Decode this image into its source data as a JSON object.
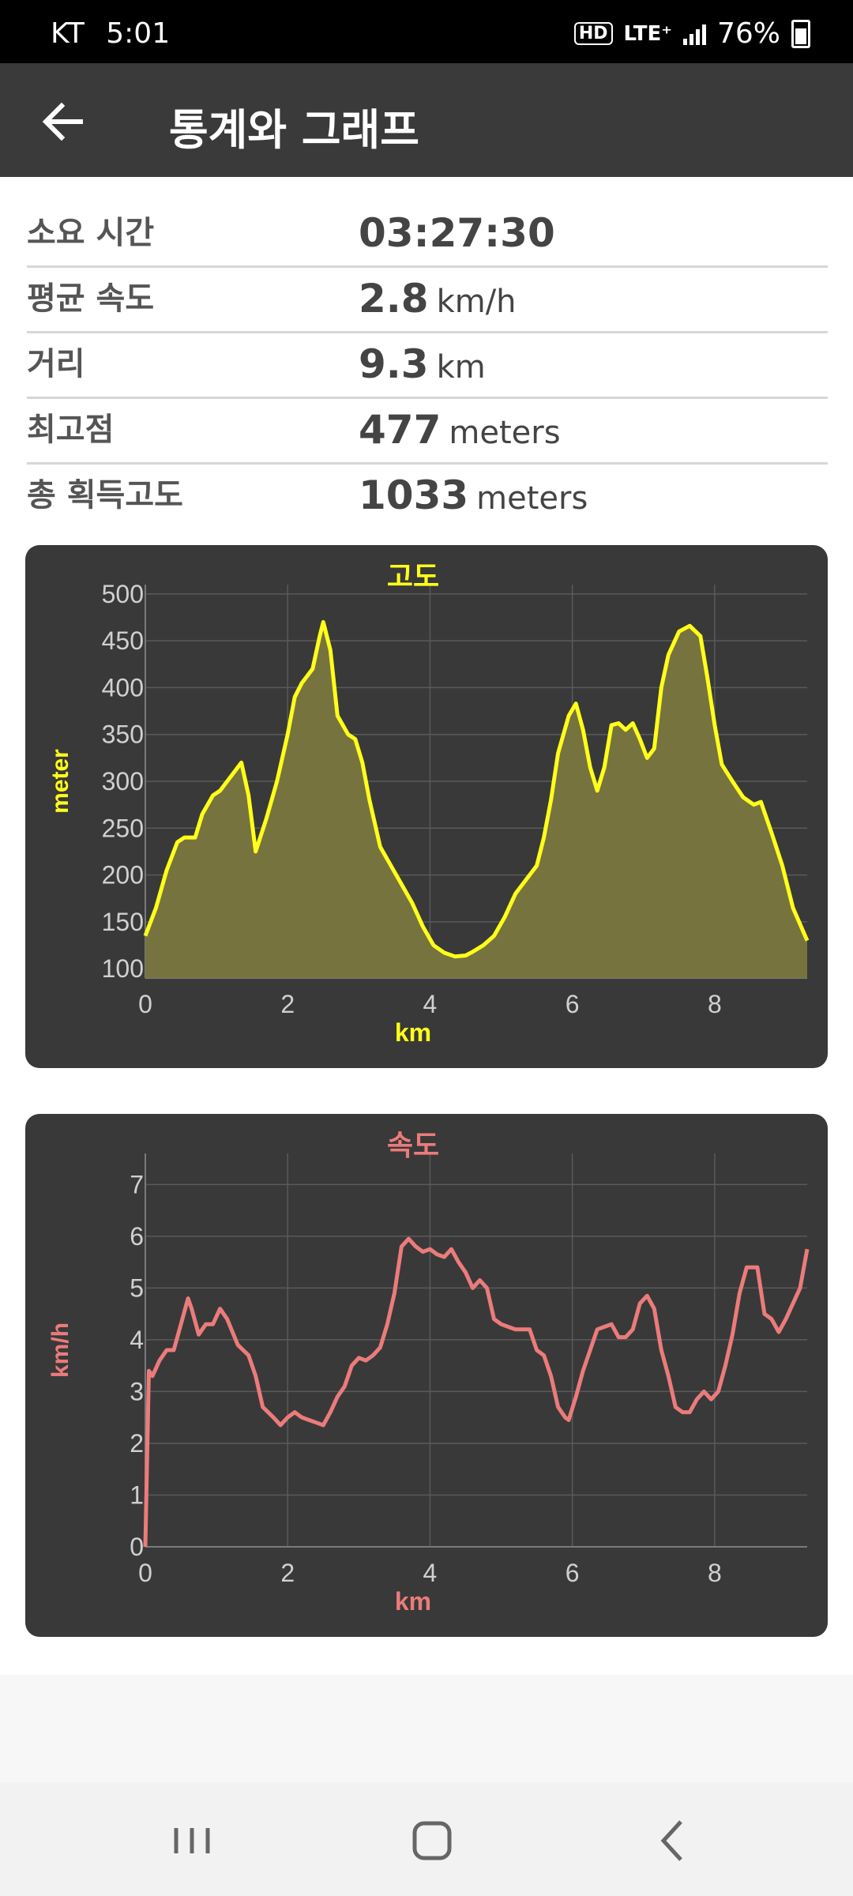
{
  "status_bar": {
    "carrier": "KT",
    "time": "5:01",
    "hd": "HD",
    "network": "LTE⁺",
    "battery": "76%"
  },
  "app_bar": {
    "title": "통계와 그래프",
    "back_icon": "arrow-left-icon"
  },
  "stats": [
    {
      "label": "소요 시간",
      "value": "03:27:30",
      "unit": ""
    },
    {
      "label": "평균 속도",
      "value": "2.8",
      "unit": "km/h"
    },
    {
      "label": "거리",
      "value": "9.3",
      "unit": "km"
    },
    {
      "label": "최고점",
      "value": "477",
      "unit": "meters"
    },
    {
      "label": "총 획득고도",
      "value": "1033",
      "unit": "meters"
    }
  ],
  "chart_data": [
    {
      "type": "area",
      "title": "고도",
      "xlabel": "km",
      "ylabel": "meter",
      "color": "#ffff1a",
      "fill": "#77733f",
      "xlim": [
        0,
        9.3
      ],
      "ylim": [
        90,
        510
      ],
      "xticks": [
        0,
        2,
        4,
        6,
        8
      ],
      "yticks": [
        100,
        150,
        200,
        250,
        300,
        350,
        400,
        450,
        500
      ],
      "grid": true,
      "x": [
        0,
        0.15,
        0.3,
        0.45,
        0.55,
        0.7,
        0.8,
        0.95,
        1.05,
        1.2,
        1.35,
        1.45,
        1.55,
        1.7,
        1.85,
        2.0,
        2.1,
        2.2,
        2.35,
        2.45,
        2.5,
        2.6,
        2.7,
        2.85,
        2.95,
        3.05,
        3.15,
        3.3,
        3.45,
        3.6,
        3.75,
        3.9,
        4.05,
        4.2,
        4.35,
        4.5,
        4.6,
        4.75,
        4.9,
        5.05,
        5.2,
        5.35,
        5.5,
        5.6,
        5.7,
        5.8,
        5.95,
        6.05,
        6.15,
        6.25,
        6.35,
        6.45,
        6.55,
        6.65,
        6.75,
        6.85,
        6.95,
        7.05,
        7.15,
        7.25,
        7.35,
        7.5,
        7.65,
        7.8,
        7.9,
        8.0,
        8.1,
        8.25,
        8.4,
        8.55,
        8.65,
        8.8,
        8.95,
        9.1,
        9.3
      ],
      "y": [
        135,
        165,
        205,
        235,
        240,
        240,
        265,
        285,
        290,
        305,
        320,
        285,
        225,
        260,
        300,
        350,
        390,
        405,
        420,
        455,
        470,
        440,
        370,
        350,
        345,
        320,
        280,
        230,
        210,
        190,
        170,
        145,
        125,
        117,
        113,
        114,
        118,
        125,
        135,
        155,
        180,
        195,
        210,
        240,
        280,
        330,
        370,
        383,
        355,
        315,
        290,
        315,
        360,
        362,
        355,
        362,
        345,
        325,
        335,
        400,
        435,
        460,
        466,
        455,
        410,
        360,
        318,
        300,
        283,
        275,
        278,
        245,
        210,
        165,
        130
      ]
    },
    {
      "type": "line",
      "title": "속도",
      "xlabel": "km",
      "ylabel": "km/h",
      "color": "#ec7b7b",
      "xlim": [
        0,
        9.3
      ],
      "ylim": [
        0,
        7.6
      ],
      "xticks": [
        0,
        2,
        4,
        6,
        8
      ],
      "yticks": [
        0,
        1,
        2,
        3,
        4,
        5,
        6,
        7
      ],
      "grid": true,
      "x": [
        0,
        0.05,
        0.1,
        0.2,
        0.3,
        0.4,
        0.5,
        0.6,
        0.65,
        0.75,
        0.85,
        0.95,
        1.05,
        1.15,
        1.3,
        1.45,
        1.55,
        1.65,
        1.8,
        1.9,
        2.0,
        2.1,
        2.2,
        2.3,
        2.4,
        2.5,
        2.6,
        2.7,
        2.8,
        2.9,
        3.0,
        3.1,
        3.2,
        3.3,
        3.4,
        3.5,
        3.6,
        3.7,
        3.8,
        3.9,
        4.0,
        4.1,
        4.2,
        4.3,
        4.4,
        4.5,
        4.6,
        4.7,
        4.8,
        4.9,
        5.0,
        5.1,
        5.2,
        5.3,
        5.4,
        5.5,
        5.6,
        5.7,
        5.8,
        5.9,
        5.95,
        6.05,
        6.15,
        6.25,
        6.35,
        6.45,
        6.55,
        6.65,
        6.75,
        6.85,
        6.95,
        7.05,
        7.15,
        7.25,
        7.35,
        7.45,
        7.55,
        7.65,
        7.75,
        7.85,
        7.95,
        8.05,
        8.15,
        8.25,
        8.35,
        8.45,
        8.6,
        8.7,
        8.8,
        8.9,
        9.0,
        9.1,
        9.2,
        9.3
      ],
      "y": [
        0,
        3.4,
        3.3,
        3.6,
        3.8,
        3.8,
        4.3,
        4.8,
        4.6,
        4.1,
        4.3,
        4.3,
        4.6,
        4.4,
        3.9,
        3.7,
        3.3,
        2.7,
        2.5,
        2.35,
        2.5,
        2.6,
        2.5,
        2.45,
        2.4,
        2.35,
        2.6,
        2.9,
        3.1,
        3.5,
        3.65,
        3.6,
        3.7,
        3.85,
        4.3,
        4.9,
        5.8,
        5.95,
        5.8,
        5.7,
        5.75,
        5.65,
        5.6,
        5.75,
        5.5,
        5.3,
        5.0,
        5.15,
        5.0,
        4.4,
        4.3,
        4.25,
        4.2,
        4.2,
        4.2,
        3.8,
        3.7,
        3.3,
        2.7,
        2.5,
        2.45,
        2.9,
        3.4,
        3.8,
        4.2,
        4.25,
        4.3,
        4.05,
        4.05,
        4.2,
        4.7,
        4.85,
        4.6,
        3.8,
        3.3,
        2.7,
        2.6,
        2.6,
        2.85,
        3.0,
        2.85,
        3.0,
        3.5,
        4.1,
        4.9,
        5.4,
        5.4,
        4.5,
        4.4,
        4.15,
        4.4,
        4.7,
        5.0,
        5.75
      ]
    }
  ]
}
